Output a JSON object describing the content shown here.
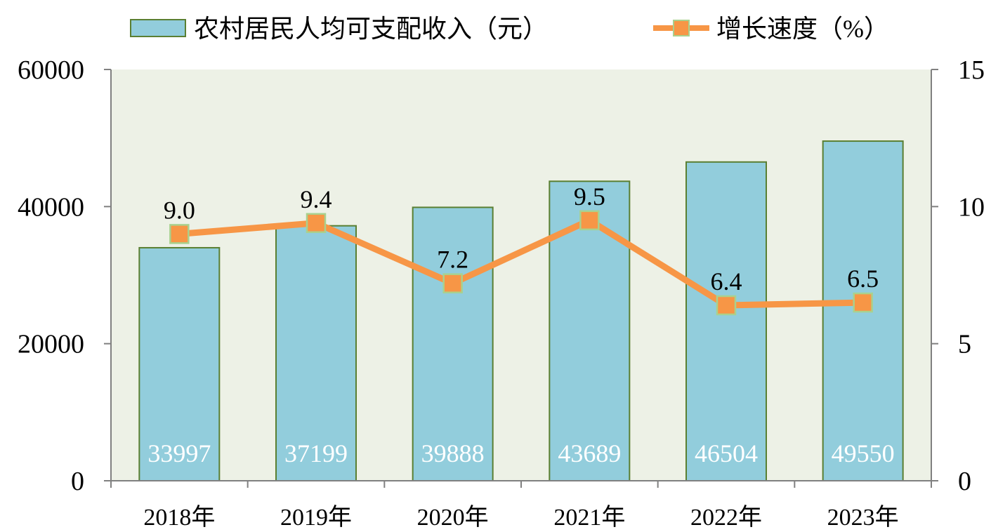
{
  "chart_data": {
    "type": "bar",
    "categories": [
      "2018年",
      "2019年",
      "2020年",
      "2021年",
      "2022年",
      "2023年"
    ],
    "series": [
      {
        "name": "农村居民人均可支配收入（元）",
        "type": "bar",
        "axis": "left",
        "values": [
          33997,
          37199,
          39888,
          43689,
          46504,
          49550
        ],
        "labels": [
          "33997",
          "37199",
          "39888",
          "43689",
          "46504",
          "49550"
        ]
      },
      {
        "name": "增长速度（%）",
        "type": "line",
        "axis": "right",
        "values": [
          9.0,
          9.4,
          7.2,
          9.5,
          6.4,
          6.5
        ],
        "labels": [
          "9.0",
          "9.4",
          "7.2",
          "9.5",
          "6.4",
          "6.5"
        ]
      }
    ],
    "y_left": {
      "ylim": [
        0,
        60000
      ],
      "ticks": [
        "0",
        "20000",
        "40000",
        "60000"
      ]
    },
    "y_right": {
      "ylim": [
        0,
        15
      ],
      "ticks": [
        "0",
        "5",
        "10",
        "15"
      ]
    },
    "legend": "top",
    "grid": false,
    "colors": {
      "plot_bg": "#EDF1E6",
      "bar_fill": "#92CDDC",
      "bar_stroke": "#5A7F32",
      "line": "#F79646",
      "marker_fill": "#F79646",
      "marker_stroke": "#A9D18E",
      "axis": "#808080"
    }
  }
}
